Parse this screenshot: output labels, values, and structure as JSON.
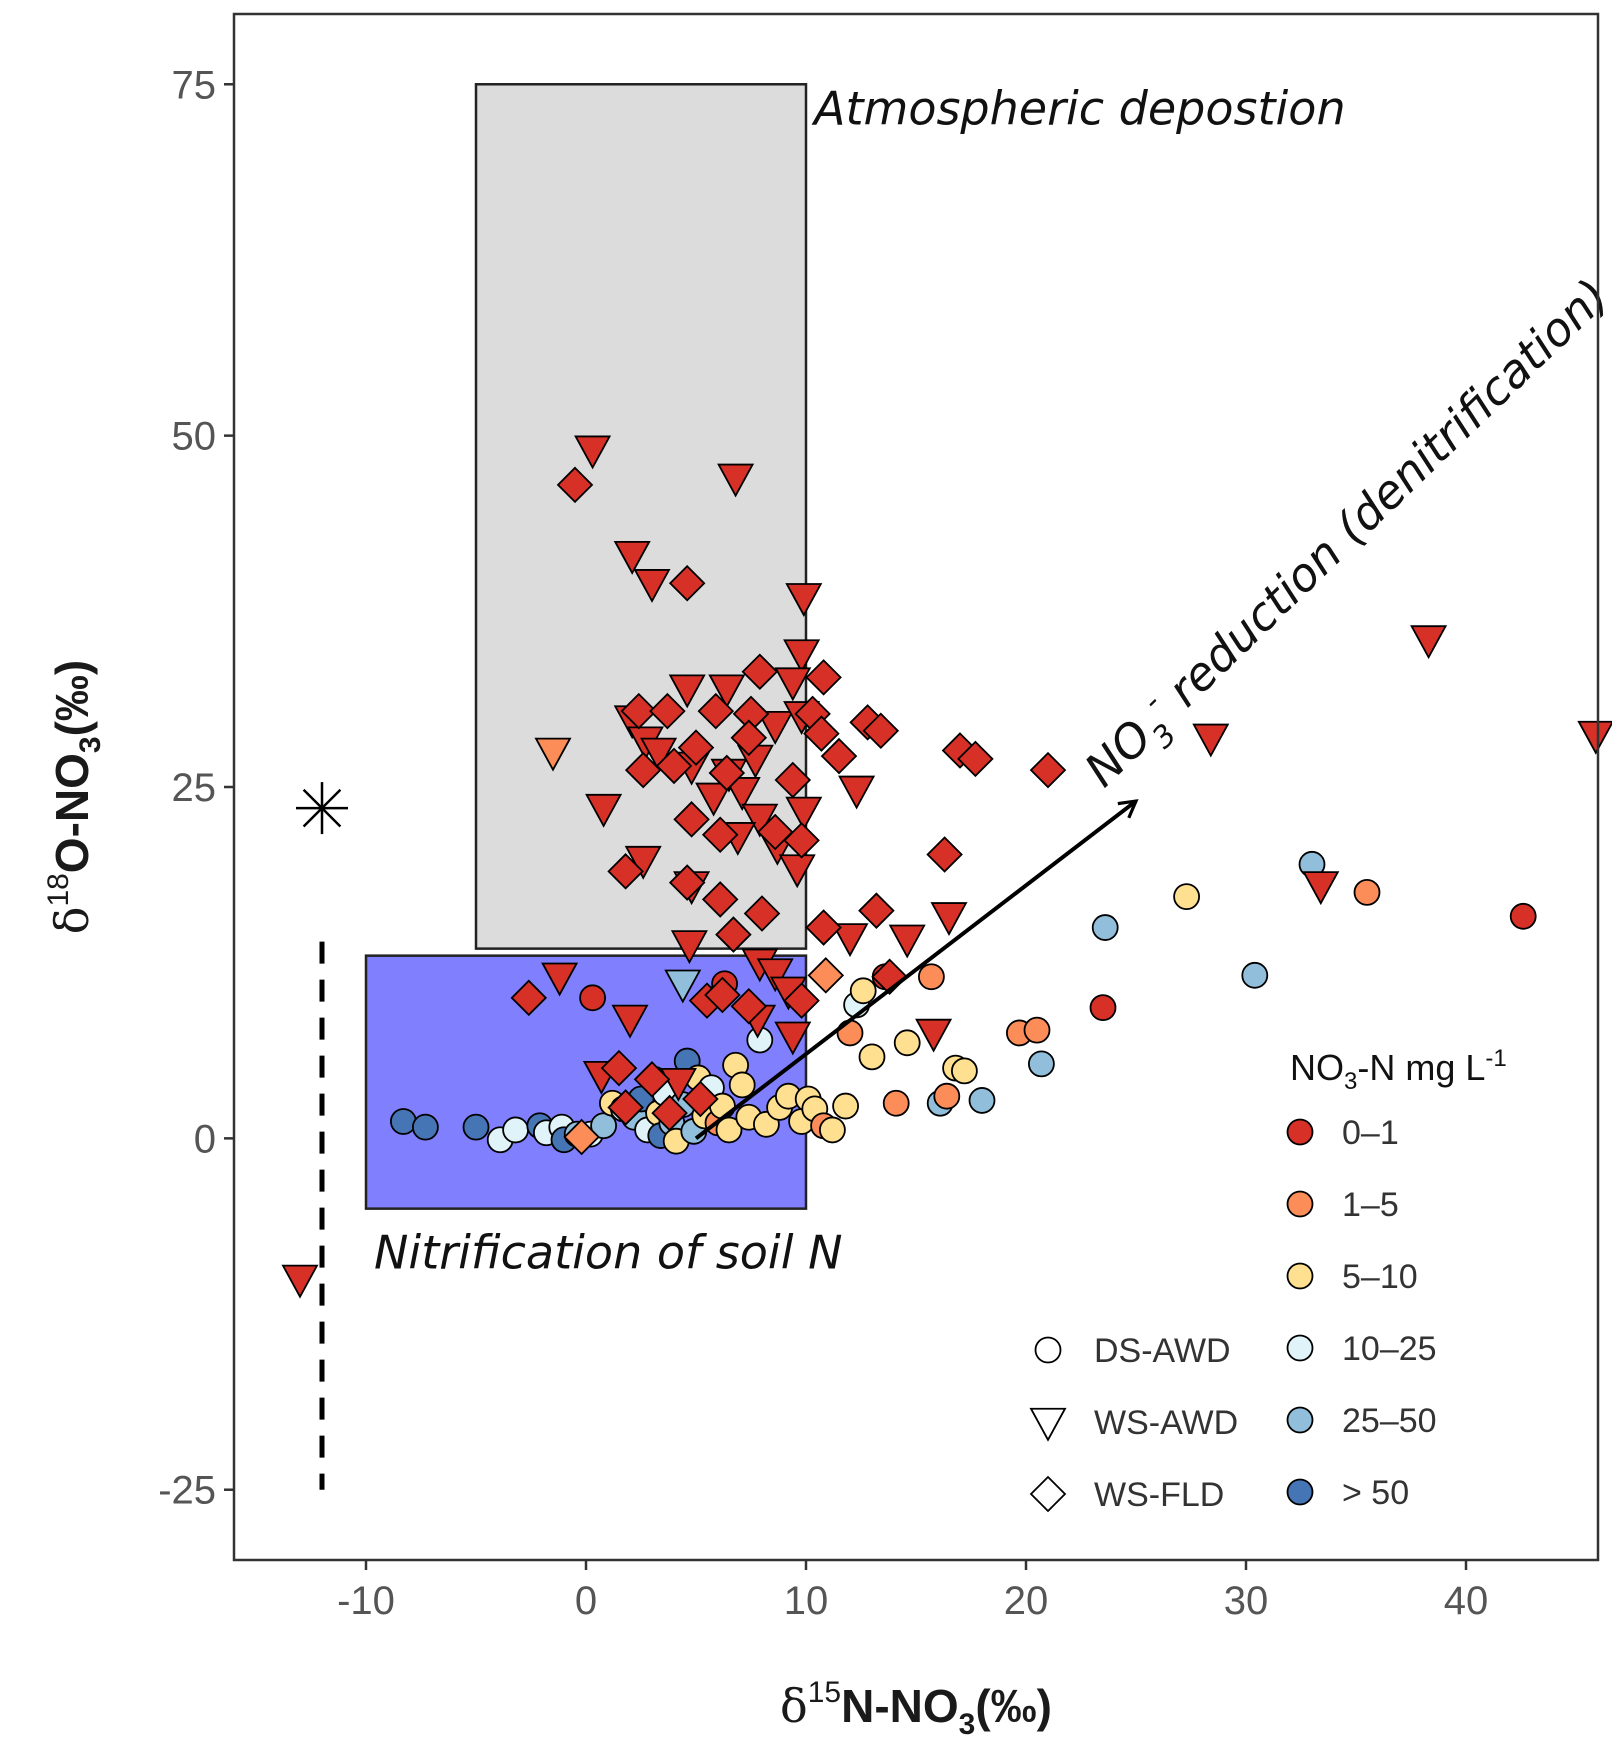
{
  "chart_data": {
    "type": "scatter",
    "xlim": [
      -16,
      46
    ],
    "ylim": [
      -30,
      80
    ],
    "x_ticks": [
      "-10",
      "0",
      "10",
      "20",
      "30",
      "40"
    ],
    "y_ticks": [
      "-25",
      "0",
      "25",
      "50",
      "75"
    ],
    "x_tick_values": [
      -10,
      0,
      10,
      20,
      30,
      40
    ],
    "y_tick_values": [
      -25,
      0,
      25,
      50,
      75
    ],
    "xlabel": {
      "delta": "δ",
      "sup": "15",
      "main": "N-NO",
      "sub": "3",
      "unit": "(‰)"
    },
    "ylabel": {
      "delta": "δ",
      "sup": "18",
      "main": "O-NO",
      "sub": "3",
      "unit": "(‰)"
    },
    "grid": false,
    "regions": [
      {
        "label": "Atmospheric depostion",
        "x": [
          -5,
          10
        ],
        "y": [
          13.5,
          75
        ],
        "color": "#dcdcdc"
      },
      {
        "label": "Nitrification of soil N",
        "x": [
          -10,
          10
        ],
        "y": [
          -5,
          13
        ],
        "color": "#8080ff"
      }
    ],
    "arrow": {
      "label_pre": "NO",
      "label_sub": "3",
      "label_sup": "-",
      "label_post": " reduction (denitrification)",
      "from": [
        5,
        0
      ],
      "to": [
        25,
        24
      ]
    },
    "reference_marker": {
      "x": -12,
      "y": 23.5,
      "symbol": "asterisk"
    },
    "reference_line": {
      "x": -12,
      "y": [
        -25,
        14
      ],
      "style": "dashed"
    },
    "legend": {
      "placement": "bottom-right",
      "color_title_pre": "NO",
      "color_title_sub": "3",
      "color_title_mid": "-N mg L",
      "color_title_sup": "-1",
      "color_entries": [
        {
          "label": "0–1",
          "color": "#d73027"
        },
        {
          "label": "1–5",
          "color": "#fc8d59"
        },
        {
          "label": "5–10",
          "color": "#fee090"
        },
        {
          "label": "10–25",
          "color": "#e0f3f8"
        },
        {
          "label": "25–50",
          "color": "#91bfdb"
        },
        {
          "label": "> 50",
          "color": "#4575b4"
        }
      ],
      "shape_entries": [
        {
          "label": "DS-AWD",
          "shape": "circle"
        },
        {
          "label": "WS-AWD",
          "shape": "triangle"
        },
        {
          "label": "WS-FLD",
          "shape": "diamond"
        }
      ]
    },
    "series": [
      {
        "name": "DS-AWD",
        "shape": "circle",
        "points": [
          [
            -8.3,
            1.2,
            5
          ],
          [
            -7.3,
            0.8,
            5
          ],
          [
            -5,
            0.8,
            5
          ],
          [
            -3.9,
            -0.1,
            3
          ],
          [
            -3.2,
            0.6,
            3
          ],
          [
            -2.1,
            0.9,
            5
          ],
          [
            -1.8,
            0.4,
            3
          ],
          [
            -1.1,
            0.8,
            3
          ],
          [
            -1,
            -0.1,
            5
          ],
          [
            -0.4,
            0.3,
            4
          ],
          [
            0.2,
            0.3,
            3
          ],
          [
            0.3,
            10,
            0
          ],
          [
            0.8,
            0.9,
            4
          ],
          [
            1.2,
            2.5,
            2
          ],
          [
            1.7,
            2.1,
            3
          ],
          [
            2.2,
            1.5,
            4
          ],
          [
            2.5,
            2.8,
            5
          ],
          [
            2.8,
            0.6,
            3
          ],
          [
            3.1,
            4.2,
            4
          ],
          [
            3.3,
            1.8,
            2
          ],
          [
            3.4,
            0.2,
            5
          ],
          [
            3.6,
            3.2,
            3
          ],
          [
            3.9,
            1.1,
            4
          ],
          [
            4.1,
            -0.2,
            2
          ],
          [
            4.4,
            2.4,
            4
          ],
          [
            4.6,
            5.5,
            5
          ],
          [
            4.9,
            0.5,
            4
          ],
          [
            5.1,
            4.3,
            2
          ],
          [
            5.4,
            1.6,
            2
          ],
          [
            5.7,
            3.6,
            3
          ],
          [
            6,
            1.1,
            1
          ],
          [
            6.2,
            2.3,
            2
          ],
          [
            6.3,
            11,
            0
          ],
          [
            6.5,
            0.6,
            2
          ],
          [
            6.8,
            5.2,
            2
          ],
          [
            7.1,
            3.8,
            2
          ],
          [
            7.4,
            1.5,
            2
          ],
          [
            7.9,
            7,
            3
          ],
          [
            8.2,
            1,
            2
          ],
          [
            8.8,
            2.2,
            2
          ],
          [
            9.2,
            3,
            2
          ],
          [
            9.8,
            1.2,
            2
          ],
          [
            10.1,
            2.8,
            2
          ],
          [
            10.4,
            2.1,
            2
          ],
          [
            10.8,
            0.9,
            1
          ],
          [
            11.2,
            0.6,
            2
          ],
          [
            11.8,
            2.3,
            2
          ],
          [
            12,
            7.5,
            1
          ],
          [
            12.3,
            9.5,
            3
          ],
          [
            12.6,
            10.5,
            2
          ],
          [
            13,
            5.8,
            2
          ],
          [
            13.6,
            11.5,
            0
          ],
          [
            14.1,
            2.5,
            1
          ],
          [
            14.6,
            6.8,
            2
          ],
          [
            15.7,
            11.5,
            1
          ],
          [
            16.1,
            2.5,
            4
          ],
          [
            16.4,
            3,
            1
          ],
          [
            16.8,
            5,
            2
          ],
          [
            17.2,
            4.8,
            2
          ],
          [
            18,
            2.7,
            4
          ],
          [
            19.7,
            7.5,
            1
          ],
          [
            20.5,
            7.7,
            1
          ],
          [
            20.7,
            5.3,
            4
          ],
          [
            23.5,
            9.3,
            0
          ],
          [
            23.6,
            15,
            4
          ],
          [
            27.3,
            17.2,
            2
          ],
          [
            30.4,
            11.6,
            4
          ],
          [
            33,
            19.5,
            4
          ],
          [
            35.5,
            17.5,
            1
          ],
          [
            42.6,
            15.8,
            0
          ]
        ]
      },
      {
        "name": "WS-AWD",
        "shape": "triangle",
        "points": [
          [
            0.3,
            49,
            0
          ],
          [
            6.8,
            47,
            0
          ],
          [
            2.1,
            41.5,
            0
          ],
          [
            3,
            39.5,
            0
          ],
          [
            9.9,
            38.5,
            0
          ],
          [
            9.8,
            34.5,
            0
          ],
          [
            9.4,
            32.5,
            0
          ],
          [
            4.6,
            32,
            0
          ],
          [
            6.4,
            32,
            0
          ],
          [
            2.1,
            29.8,
            0
          ],
          [
            2.7,
            28.3,
            0
          ],
          [
            3.3,
            27.5,
            0
          ],
          [
            4.8,
            26.5,
            0
          ],
          [
            6.5,
            26,
            0
          ],
          [
            7.7,
            27,
            0
          ],
          [
            8.6,
            29.4,
            0
          ],
          [
            9.8,
            30.1,
            0
          ],
          [
            -1.5,
            27.5,
            1
          ],
          [
            0.8,
            23.5,
            0
          ],
          [
            5.8,
            24.3,
            0
          ],
          [
            7.1,
            24.7,
            0
          ],
          [
            7.9,
            22.8,
            0
          ],
          [
            9.9,
            23.3,
            0
          ],
          [
            6.9,
            21.5,
            0
          ],
          [
            8.7,
            20.8,
            0
          ],
          [
            2.6,
            19.8,
            0
          ],
          [
            4.8,
            18,
            0
          ],
          [
            9.6,
            19.2,
            0
          ],
          [
            12.3,
            24.8,
            0
          ],
          [
            4.7,
            13.8,
            0
          ],
          [
            12,
            14.3,
            0
          ],
          [
            14.6,
            14.2,
            0
          ],
          [
            16.5,
            15.8,
            0
          ],
          [
            -1.2,
            11.5,
            0
          ],
          [
            2,
            8.5,
            0
          ],
          [
            4.4,
            11,
            4
          ],
          [
            7.9,
            12.5,
            0
          ],
          [
            8.6,
            11.8,
            0
          ],
          [
            9.2,
            10.5,
            0
          ],
          [
            9.4,
            7.3,
            0
          ],
          [
            0.7,
            4.5,
            0
          ],
          [
            4.2,
            4,
            0
          ],
          [
            7.8,
            8.5,
            0
          ],
          [
            15.8,
            7.5,
            0
          ],
          [
            28.4,
            28.5,
            0
          ],
          [
            38.3,
            35.5,
            0
          ],
          [
            45.9,
            28.7,
            0
          ],
          [
            33.4,
            18,
            0
          ],
          [
            -13,
            -10,
            0
          ]
        ]
      },
      {
        "name": "WS-FLD",
        "shape": "diamond",
        "points": [
          [
            -0.5,
            46.5,
            0
          ],
          [
            4.6,
            39.5,
            0
          ],
          [
            7.9,
            33.2,
            0
          ],
          [
            10.8,
            32.8,
            0
          ],
          [
            2.4,
            30.4,
            0
          ],
          [
            3.7,
            30.4,
            0
          ],
          [
            5.9,
            30.4,
            0
          ],
          [
            7.5,
            30.2,
            0
          ],
          [
            10.3,
            30.2,
            0
          ],
          [
            12.8,
            29.6,
            0
          ],
          [
            13.4,
            29,
            0
          ],
          [
            5,
            27.8,
            0
          ],
          [
            7.4,
            28.5,
            0
          ],
          [
            10.7,
            28.8,
            0
          ],
          [
            11.5,
            27.2,
            0
          ],
          [
            2.6,
            26.2,
            0
          ],
          [
            4,
            26.5,
            0
          ],
          [
            6.4,
            26,
            0
          ],
          [
            9.4,
            25.5,
            0
          ],
          [
            17,
            27.6,
            0
          ],
          [
            17.7,
            27,
            0
          ],
          [
            21,
            26.2,
            0
          ],
          [
            4.8,
            22.7,
            0
          ],
          [
            6.1,
            21.6,
            0
          ],
          [
            8.6,
            21.8,
            0
          ],
          [
            9.8,
            21.2,
            0
          ],
          [
            1.8,
            19,
            0
          ],
          [
            4.6,
            18.2,
            0
          ],
          [
            6.1,
            17,
            0
          ],
          [
            8,
            16,
            0
          ],
          [
            13.2,
            16.2,
            0
          ],
          [
            16.3,
            20.2,
            0
          ],
          [
            10.8,
            15,
            0
          ],
          [
            6.7,
            14.5,
            0
          ],
          [
            10.9,
            11.6,
            1
          ],
          [
            13.8,
            11.5,
            0
          ],
          [
            -2.6,
            10,
            0
          ],
          [
            5.5,
            9.8,
            0
          ],
          [
            1.5,
            5,
            0
          ],
          [
            3,
            4.2,
            0
          ],
          [
            6.2,
            10.2,
            0
          ],
          [
            7.4,
            9.4,
            0
          ],
          [
            9.8,
            9.8,
            0
          ],
          [
            5.2,
            2.8,
            0
          ],
          [
            1.8,
            2.2,
            0
          ],
          [
            3.8,
            1.8,
            0
          ],
          [
            -0.2,
            0.1,
            1
          ]
        ]
      }
    ]
  }
}
